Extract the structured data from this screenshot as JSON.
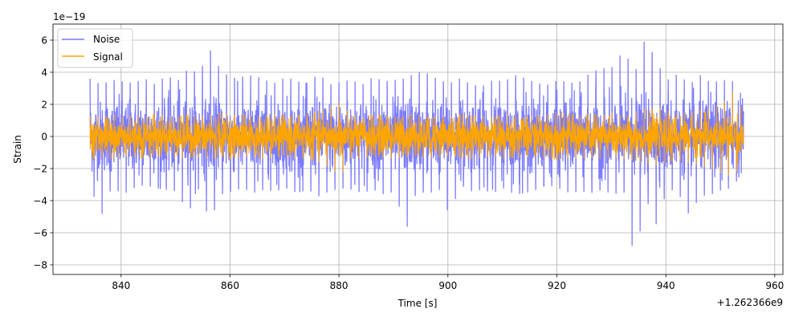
{
  "chart_data": {
    "type": "line",
    "xlabel": "Time [s]",
    "ylabel": "Strain",
    "x_offset_label": "+1.262366e9",
    "y_multiplier_label": "1e−19",
    "xlim": [
      827.5,
      961.5
    ],
    "ylim": [
      -8.6,
      7.0
    ],
    "x_ticks": [
      840,
      860,
      880,
      900,
      920,
      940,
      960
    ],
    "x_tick_labels": [
      "840",
      "860",
      "880",
      "900",
      "920",
      "940",
      "960"
    ],
    "y_ticks": [
      -8,
      -6,
      -4,
      -2,
      0,
      2,
      4,
      6
    ],
    "y_tick_labels": [
      "−8",
      "−6",
      "−4",
      "−2",
      "0",
      "2",
      "4",
      "6"
    ],
    "grid": true,
    "legend_placement": "top-left",
    "series": [
      {
        "name": "Noise",
        "color": "#7b7bff",
        "x_range": [
          834.3,
          954.3
        ],
        "envelope_upper": [
          3.6,
          3.2,
          3.5,
          3.4,
          3.3,
          3.6,
          3.2,
          3.8,
          3.4,
          4.2,
          3.9,
          5.4,
          4.1,
          3.6,
          3.7,
          3.8,
          3.5,
          3.3,
          3.7,
          3.4,
          3.3,
          3.9,
          3.2,
          3.4,
          3.5,
          3.2,
          3.7,
          3.4,
          3.5,
          3.6,
          4.0,
          3.9,
          3.5,
          3.3,
          3.6,
          3.2,
          3.1,
          3.5,
          3.4,
          3.8,
          3.6,
          3.3,
          3.2,
          3.5,
          3.3,
          3.4,
          4.0,
          4.2,
          4.3,
          5.4,
          3.9,
          6.2,
          4.6,
          3.5,
          3.9,
          3.2,
          3.8,
          3.3,
          3.5,
          3.4,
          2.4
        ],
        "envelope_lower": [
          -3.0,
          -5.0,
          -3.1,
          -3.6,
          -3.2,
          -3.0,
          -3.2,
          -3.3,
          -3.4,
          -4.8,
          -3.2,
          -5.3,
          -3.6,
          -3.4,
          -3.2,
          -3.5,
          -3.3,
          -3.4,
          -3.2,
          -3.5,
          -3.3,
          -3.7,
          -3.4,
          -3.2,
          -3.3,
          -3.5,
          -3.3,
          -3.6,
          -3.4,
          -5.9,
          -3.3,
          -3.6,
          -3.2,
          -4.9,
          -3.0,
          -3.4,
          -3.3,
          -3.5,
          -3.2,
          -3.6,
          -3.5,
          -3.3,
          -3.0,
          -3.2,
          -3.5,
          -3.4,
          -3.5,
          -3.3,
          -3.6,
          -3.4,
          -7.9,
          -3.8,
          -5.5,
          -3.2,
          -3.5,
          -4.9,
          -3.7,
          -3.6,
          -3.3,
          -3.2,
          -2.0
        ],
        "std": 1.05
      },
      {
        "name": "Signal",
        "color": "#ffa500",
        "x_range": [
          834.3,
          954.3
        ],
        "envelope_upper": [
          1.3,
          1.2,
          1.4,
          1.2,
          1.3,
          1.2,
          1.4,
          1.3,
          1.2,
          1.4,
          1.3,
          1.3,
          1.5,
          1.3,
          1.4,
          1.2,
          1.3,
          1.4,
          1.3,
          1.3,
          1.4,
          1.6,
          1.8,
          2.1,
          1.3,
          1.2,
          1.4,
          1.3,
          1.2,
          1.3,
          1.4,
          1.2,
          1.3,
          1.2,
          1.4,
          1.3,
          1.3,
          1.2,
          1.4,
          1.3,
          1.2,
          1.3,
          1.4,
          1.5,
          1.4,
          1.3,
          1.4,
          1.3,
          1.5,
          1.2,
          1.5,
          1.7,
          1.8,
          1.6,
          1.4,
          1.5,
          1.6,
          1.8,
          2.0,
          2.8,
          1.5
        ],
        "envelope_lower": [
          -1.4,
          -1.3,
          -1.4,
          -1.2,
          -1.3,
          -1.4,
          -1.3,
          -1.2,
          -1.4,
          -1.3,
          -1.3,
          -1.4,
          -1.3,
          -1.4,
          -1.2,
          -1.3,
          -1.4,
          -1.3,
          -1.2,
          -1.4,
          -1.4,
          -1.6,
          -1.9,
          -2.5,
          -1.3,
          -1.4,
          -1.2,
          -1.3,
          -1.4,
          -1.3,
          -1.2,
          -1.4,
          -1.3,
          -1.2,
          -1.3,
          -1.4,
          -1.3,
          -1.2,
          -1.4,
          -1.3,
          -1.3,
          -1.2,
          -1.4,
          -1.5,
          -1.3,
          -1.4,
          -1.3,
          -1.4,
          -1.3,
          -1.4,
          -1.5,
          -1.7,
          -1.8,
          -1.6,
          -1.5,
          -1.6,
          -1.8,
          -2.0,
          -2.3,
          -2.5,
          -1.6
        ],
        "std": 0.55
      }
    ]
  }
}
